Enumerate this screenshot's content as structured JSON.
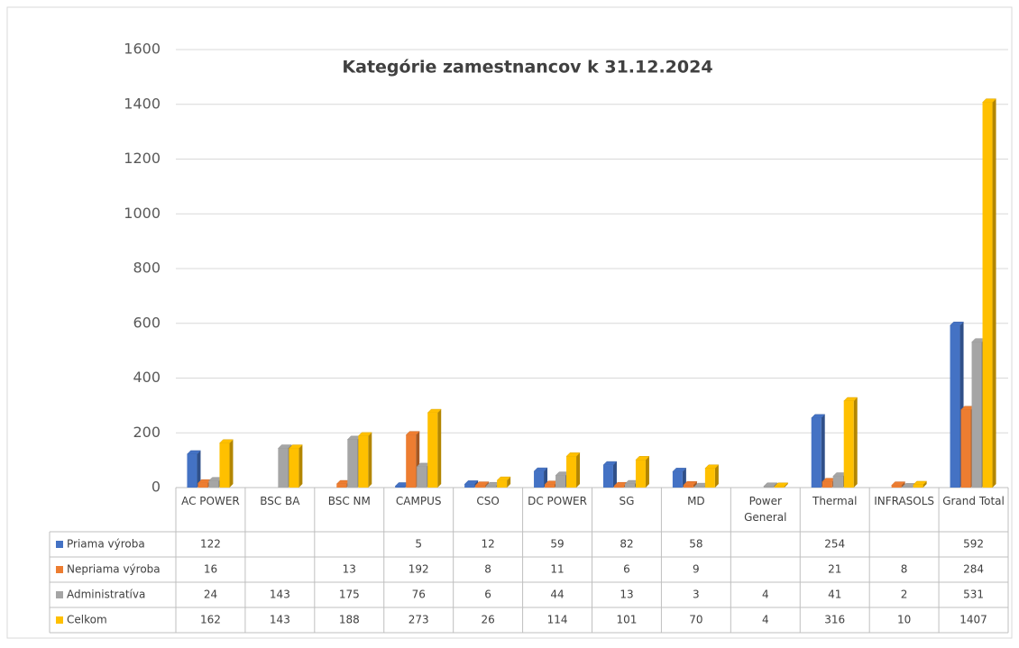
{
  "chart_data": {
    "type": "bar",
    "title": "Kategórie zamestnancov k 31.12.2024",
    "categories": [
      "AC POWER",
      "BSC BA",
      "BSC NM",
      "CAMPUS",
      "CSO",
      "DC POWER",
      "SG",
      "MD",
      "Power General",
      "Thermal",
      "INFRASOLS",
      "Grand Total"
    ],
    "series": [
      {
        "name": "Priama výroba",
        "color": "#4472c4",
        "values": [
          122,
          null,
          null,
          5,
          12,
          59,
          82,
          58,
          null,
          254,
          null,
          592
        ]
      },
      {
        "name": "Nepriama výroba",
        "color": "#ed7d31",
        "values": [
          16,
          null,
          13,
          192,
          8,
          11,
          6,
          9,
          null,
          21,
          8,
          284
        ]
      },
      {
        "name": "Administratíva",
        "color": "#a5a5a5",
        "values": [
          24,
          143,
          175,
          76,
          6,
          44,
          13,
          3,
          4,
          41,
          2,
          531
        ]
      },
      {
        "name": "Celkom",
        "color": "#ffc000",
        "values": [
          162,
          143,
          188,
          273,
          26,
          114,
          101,
          70,
          4,
          316,
          10,
          1407
        ]
      }
    ],
    "ylim": [
      0,
      1600
    ],
    "yticks": [
      0,
      200,
      400,
      600,
      800,
      1000,
      1200,
      1400,
      1600
    ],
    "grid": true
  }
}
